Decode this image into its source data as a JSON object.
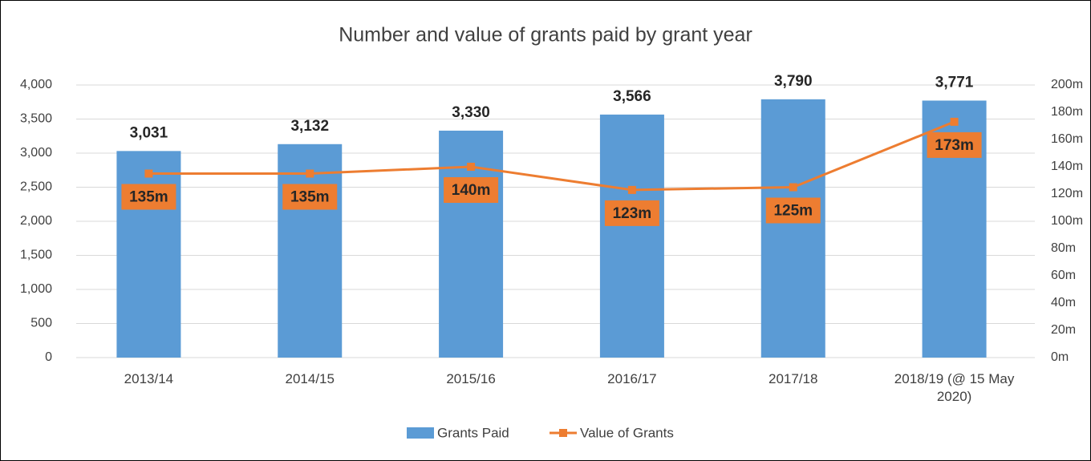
{
  "chart_data": {
    "type": "bar",
    "title": "Number and value of grants paid by grant year",
    "categories": [
      "2013/14",
      "2014/15",
      "2015/16",
      "2016/17",
      "2017/18",
      "2018/19 (@ 15 May 2020)"
    ],
    "series": [
      {
        "name": "Grants Paid",
        "type": "bar",
        "color": "#5b9bd5",
        "values": [
          3031,
          3132,
          3330,
          3566,
          3790,
          3771
        ],
        "value_labels": [
          "3,031",
          "3,132",
          "3,330",
          "3,566",
          "3,790",
          "3,771"
        ]
      },
      {
        "name": "Value of Grants",
        "type": "line",
        "axis": "y2",
        "color": "#ed7d31",
        "values": [
          135,
          135,
          140,
          123,
          125,
          173
        ],
        "value_labels": [
          "135m",
          "135m",
          "140m",
          "123m",
          "125m",
          "173m"
        ]
      }
    ],
    "ylim": [
      0,
      4000
    ],
    "yticks": [
      0,
      500,
      {
        "value": 1000,
        "label": "1,000"
      },
      {
        "value": 1500,
        "label": "1,500"
      },
      {
        "value": 2000,
        "label": "2,000"
      },
      {
        "value": 2500,
        "label": "2,500"
      },
      {
        "value": 3000,
        "label": "3,000"
      },
      {
        "value": 3500,
        "label": "3,500"
      },
      {
        "value": 4000,
        "label": "4,000"
      }
    ],
    "y2lim": [
      0,
      200
    ],
    "y2ticks": [
      {
        "value": 0,
        "label": "0m"
      },
      {
        "value": 20,
        "label": "20m"
      },
      {
        "value": 40,
        "label": "40m"
      },
      {
        "value": 60,
        "label": "60m"
      },
      {
        "value": 80,
        "label": "80m"
      },
      {
        "value": 100,
        "label": "100m"
      },
      {
        "value": 120,
        "label": "120m"
      },
      {
        "value": 140,
        "label": "140m"
      },
      {
        "value": 160,
        "label": "160m"
      },
      {
        "value": 180,
        "label": "180m"
      },
      {
        "value": 200,
        "label": "200m"
      }
    ],
    "grid": true,
    "legend": "bottom"
  }
}
